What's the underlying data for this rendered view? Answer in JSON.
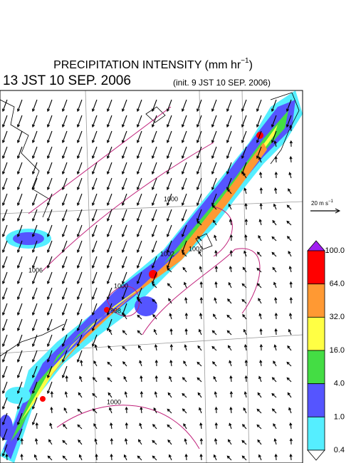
{
  "header": {
    "title": {
      "text": "PRECIPITATION INTENSITY (mm hr",
      "sup": "−1",
      "after": ")"
    },
    "valid_time": "13 JST 10 SEP. 2006",
    "init_time": "(init. 9 JST 10 SEP. 2006)"
  },
  "wind_reference": {
    "text": "20 m s",
    "sup": "−1"
  },
  "isobar_labels": [
    1000,
    1002,
    1002,
    1000,
    998,
    1000,
    1006
  ],
  "colorbar": {
    "levels": [
      {
        "value": 100,
        "label": "100.0"
      },
      {
        "value": 64,
        "label": "64.0"
      },
      {
        "value": 32,
        "label": "32.0"
      },
      {
        "value": 16,
        "label": "16.0"
      },
      {
        "value": 4,
        "label": "4.0"
      },
      {
        "value": 1,
        "label": "1.0"
      },
      {
        "value": 0.4,
        "label": "0.4"
      }
    ],
    "colors": [
      "#a020f0",
      "#ff0000",
      "#ff9933",
      "#ffff44",
      "#44dd44",
      "#5555ff",
      "#55eeff",
      "#ffffff"
    ]
  }
}
